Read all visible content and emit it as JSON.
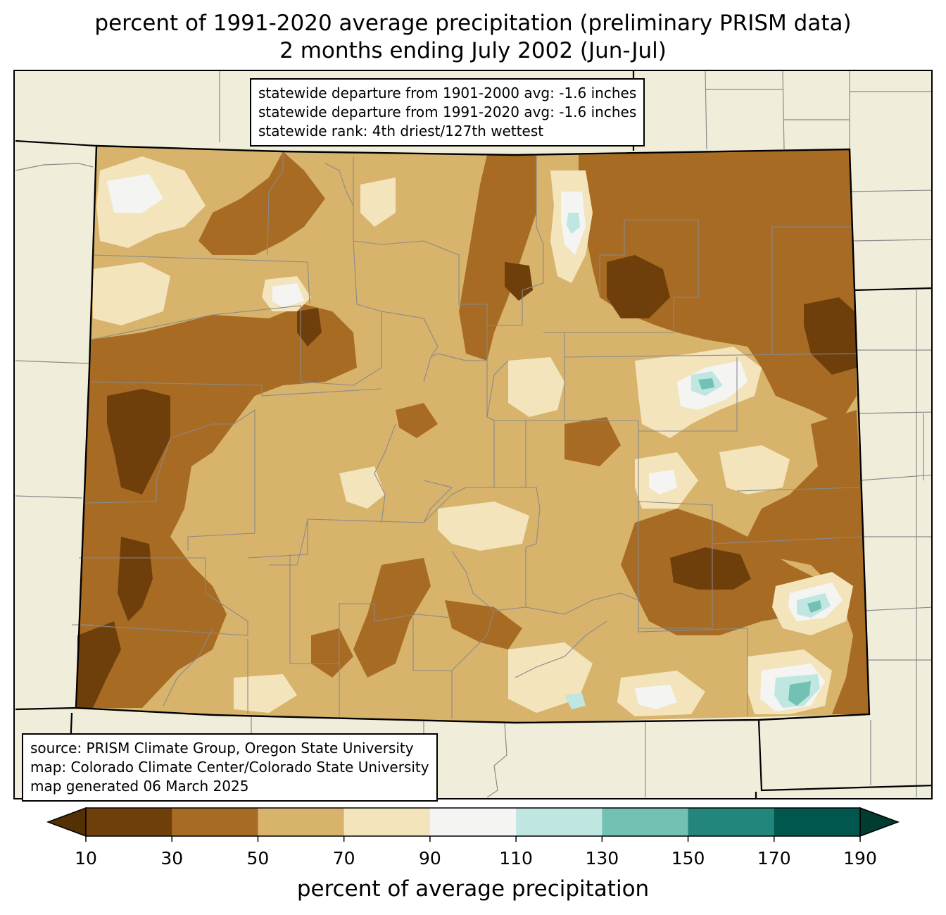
{
  "title": {
    "line1": "percent of 1991-2020 average precipitation (preliminary PRISM data)",
    "line2": "2 months ending July 2002 (Jun-Jul)"
  },
  "stats_box": {
    "line1": "statewide departure from 1901-2000 avg: -1.6 inches",
    "line2": "statewide departure from 1991-2020 avg: -1.6 inches",
    "line3": "statewide rank: 4th driest/127th wettest"
  },
  "source_box": {
    "line1": "source: PRISM Climate Group, Oregon State University",
    "line2": "map: Colorado Climate Center/Colorado State University",
    "line3": "map generated 06 March 2025"
  },
  "colorbar": {
    "label": "percent of average precipitation",
    "ticks": [
      "10",
      "30",
      "50",
      "70",
      "90",
      "110",
      "130",
      "150",
      "170",
      "190"
    ],
    "colors": [
      "#6f3f0b",
      "#a86b23",
      "#d8b36c",
      "#f3e4bc",
      "#f4f5f3",
      "#bfe6e1",
      "#72c1b2",
      "#23867d",
      "#01564d"
    ],
    "under_color": "#543005",
    "over_color": "#003c30"
  },
  "colors": {
    "background": "#f0eedb",
    "state_fill": "#d8b36c",
    "county_lines": "#8a8a8a",
    "state_border": "#000000"
  }
}
